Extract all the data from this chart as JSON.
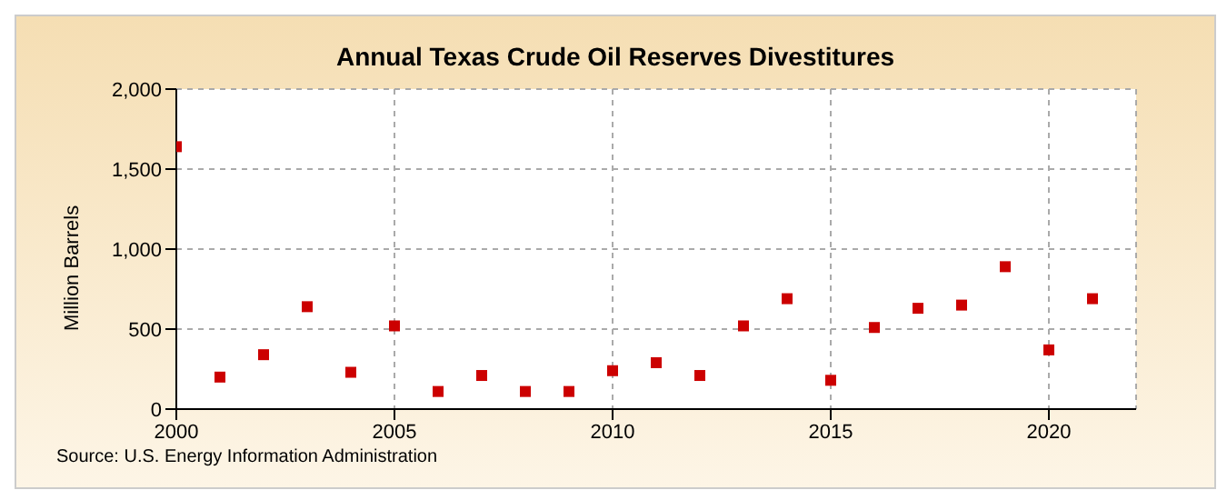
{
  "chart_data": {
    "type": "scatter",
    "title": "Annual Texas Crude Oil Reserves Divestitures",
    "ylabel": "Million Barrels",
    "x": [
      2000,
      2001,
      2002,
      2003,
      2004,
      2005,
      2006,
      2007,
      2008,
      2009,
      2010,
      2011,
      2012,
      2013,
      2014,
      2015,
      2016,
      2017,
      2018,
      2019,
      2020,
      2021
    ],
    "series": [
      {
        "color": "#cc0000",
        "values": [
          1640,
          200,
          340,
          640,
          230,
          520,
          110,
          210,
          110,
          110,
          240,
          290,
          210,
          520,
          690,
          180,
          510,
          630,
          650,
          890,
          370,
          690
        ]
      }
    ],
    "xlim": [
      2000,
      2022
    ],
    "xticks": [
      2000,
      2005,
      2010,
      2015,
      2020
    ],
    "ylim": [
      0,
      2000
    ],
    "yticks": [
      {
        "value": 0,
        "label": "0"
      },
      {
        "value": 500,
        "label": "500"
      },
      {
        "value": 1000,
        "label": "1,000"
      },
      {
        "value": 1500,
        "label": "1,500"
      },
      {
        "value": 2000,
        "label": "2,000"
      }
    ],
    "grid": true,
    "marker": "square",
    "legend": false,
    "annotations": [
      "Source: U.S. Energy Information Administration"
    ]
  }
}
